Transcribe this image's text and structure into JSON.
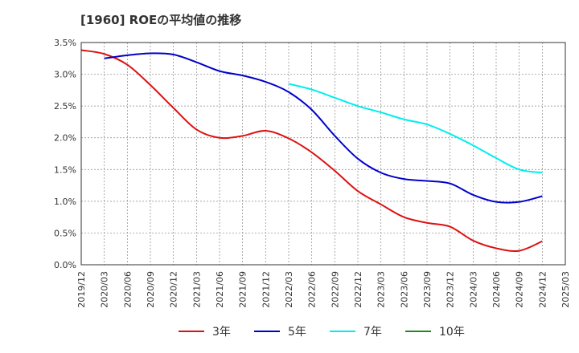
{
  "chart_data": {
    "type": "line",
    "title": "[1960]  ROEの平均値の推移",
    "xlabel": "",
    "ylabel": "",
    "ylim": [
      0,
      0.035
    ],
    "y_ticks": [
      "0.0%",
      "0.5%",
      "1.0%",
      "1.5%",
      "2.0%",
      "2.5%",
      "3.0%",
      "3.5%"
    ],
    "x_ticks": [
      "2019/12",
      "2020/03",
      "2020/06",
      "2020/09",
      "2020/12",
      "2021/03",
      "2021/06",
      "2021/09",
      "2021/12",
      "2022/03",
      "2022/06",
      "2022/09",
      "2022/12",
      "2023/03",
      "2023/06",
      "2023/09",
      "2023/12",
      "2024/03",
      "2024/06",
      "2024/09",
      "2024/12",
      "2025/03"
    ],
    "grid": true,
    "legend_position": "bottom",
    "series": [
      {
        "name": "3年",
        "color": "#dd1111",
        "x": [
          "2019/12",
          "2020/03",
          "2020/06",
          "2020/09",
          "2020/12",
          "2021/03",
          "2021/06",
          "2021/09",
          "2021/12",
          "2022/03",
          "2022/06",
          "2022/09",
          "2022/12",
          "2023/03",
          "2023/06",
          "2023/09",
          "2023/12",
          "2024/03",
          "2024/06",
          "2024/09",
          "2024/12"
        ],
        "values": [
          0.0338,
          0.0332,
          0.0315,
          0.0283,
          0.0247,
          0.0213,
          0.02,
          0.0203,
          0.0211,
          0.0199,
          0.0177,
          0.0148,
          0.0116,
          0.0095,
          0.0075,
          0.0066,
          0.006,
          0.0038,
          0.0026,
          0.0022,
          0.0037
        ]
      },
      {
        "name": "5年",
        "color": "#0000cc",
        "x": [
          "2020/03",
          "2020/06",
          "2020/09",
          "2020/12",
          "2021/03",
          "2021/06",
          "2021/09",
          "2021/12",
          "2022/03",
          "2022/06",
          "2022/09",
          "2022/12",
          "2023/03",
          "2023/06",
          "2023/09",
          "2023/12",
          "2024/03",
          "2024/06",
          "2024/09",
          "2024/12"
        ],
        "values": [
          0.0325,
          0.033,
          0.0333,
          0.0331,
          0.0319,
          0.0305,
          0.0298,
          0.0288,
          0.0272,
          0.0244,
          0.0203,
          0.0167,
          0.0145,
          0.0135,
          0.0132,
          0.0128,
          0.011,
          0.0099,
          0.0099,
          0.0108
        ]
      },
      {
        "name": "7年",
        "color": "#00eeee",
        "x": [
          "2022/03",
          "2022/06",
          "2022/09",
          "2022/12",
          "2023/03",
          "2023/06",
          "2023/09",
          "2023/12",
          "2024/03",
          "2024/06",
          "2024/09",
          "2024/12"
        ],
        "values": [
          0.0285,
          0.0276,
          0.0263,
          0.025,
          0.024,
          0.0229,
          0.0221,
          0.0206,
          0.0188,
          0.0168,
          0.015,
          0.0145
        ]
      },
      {
        "name": "10年",
        "color": "#228822",
        "x": [],
        "values": []
      }
    ]
  }
}
